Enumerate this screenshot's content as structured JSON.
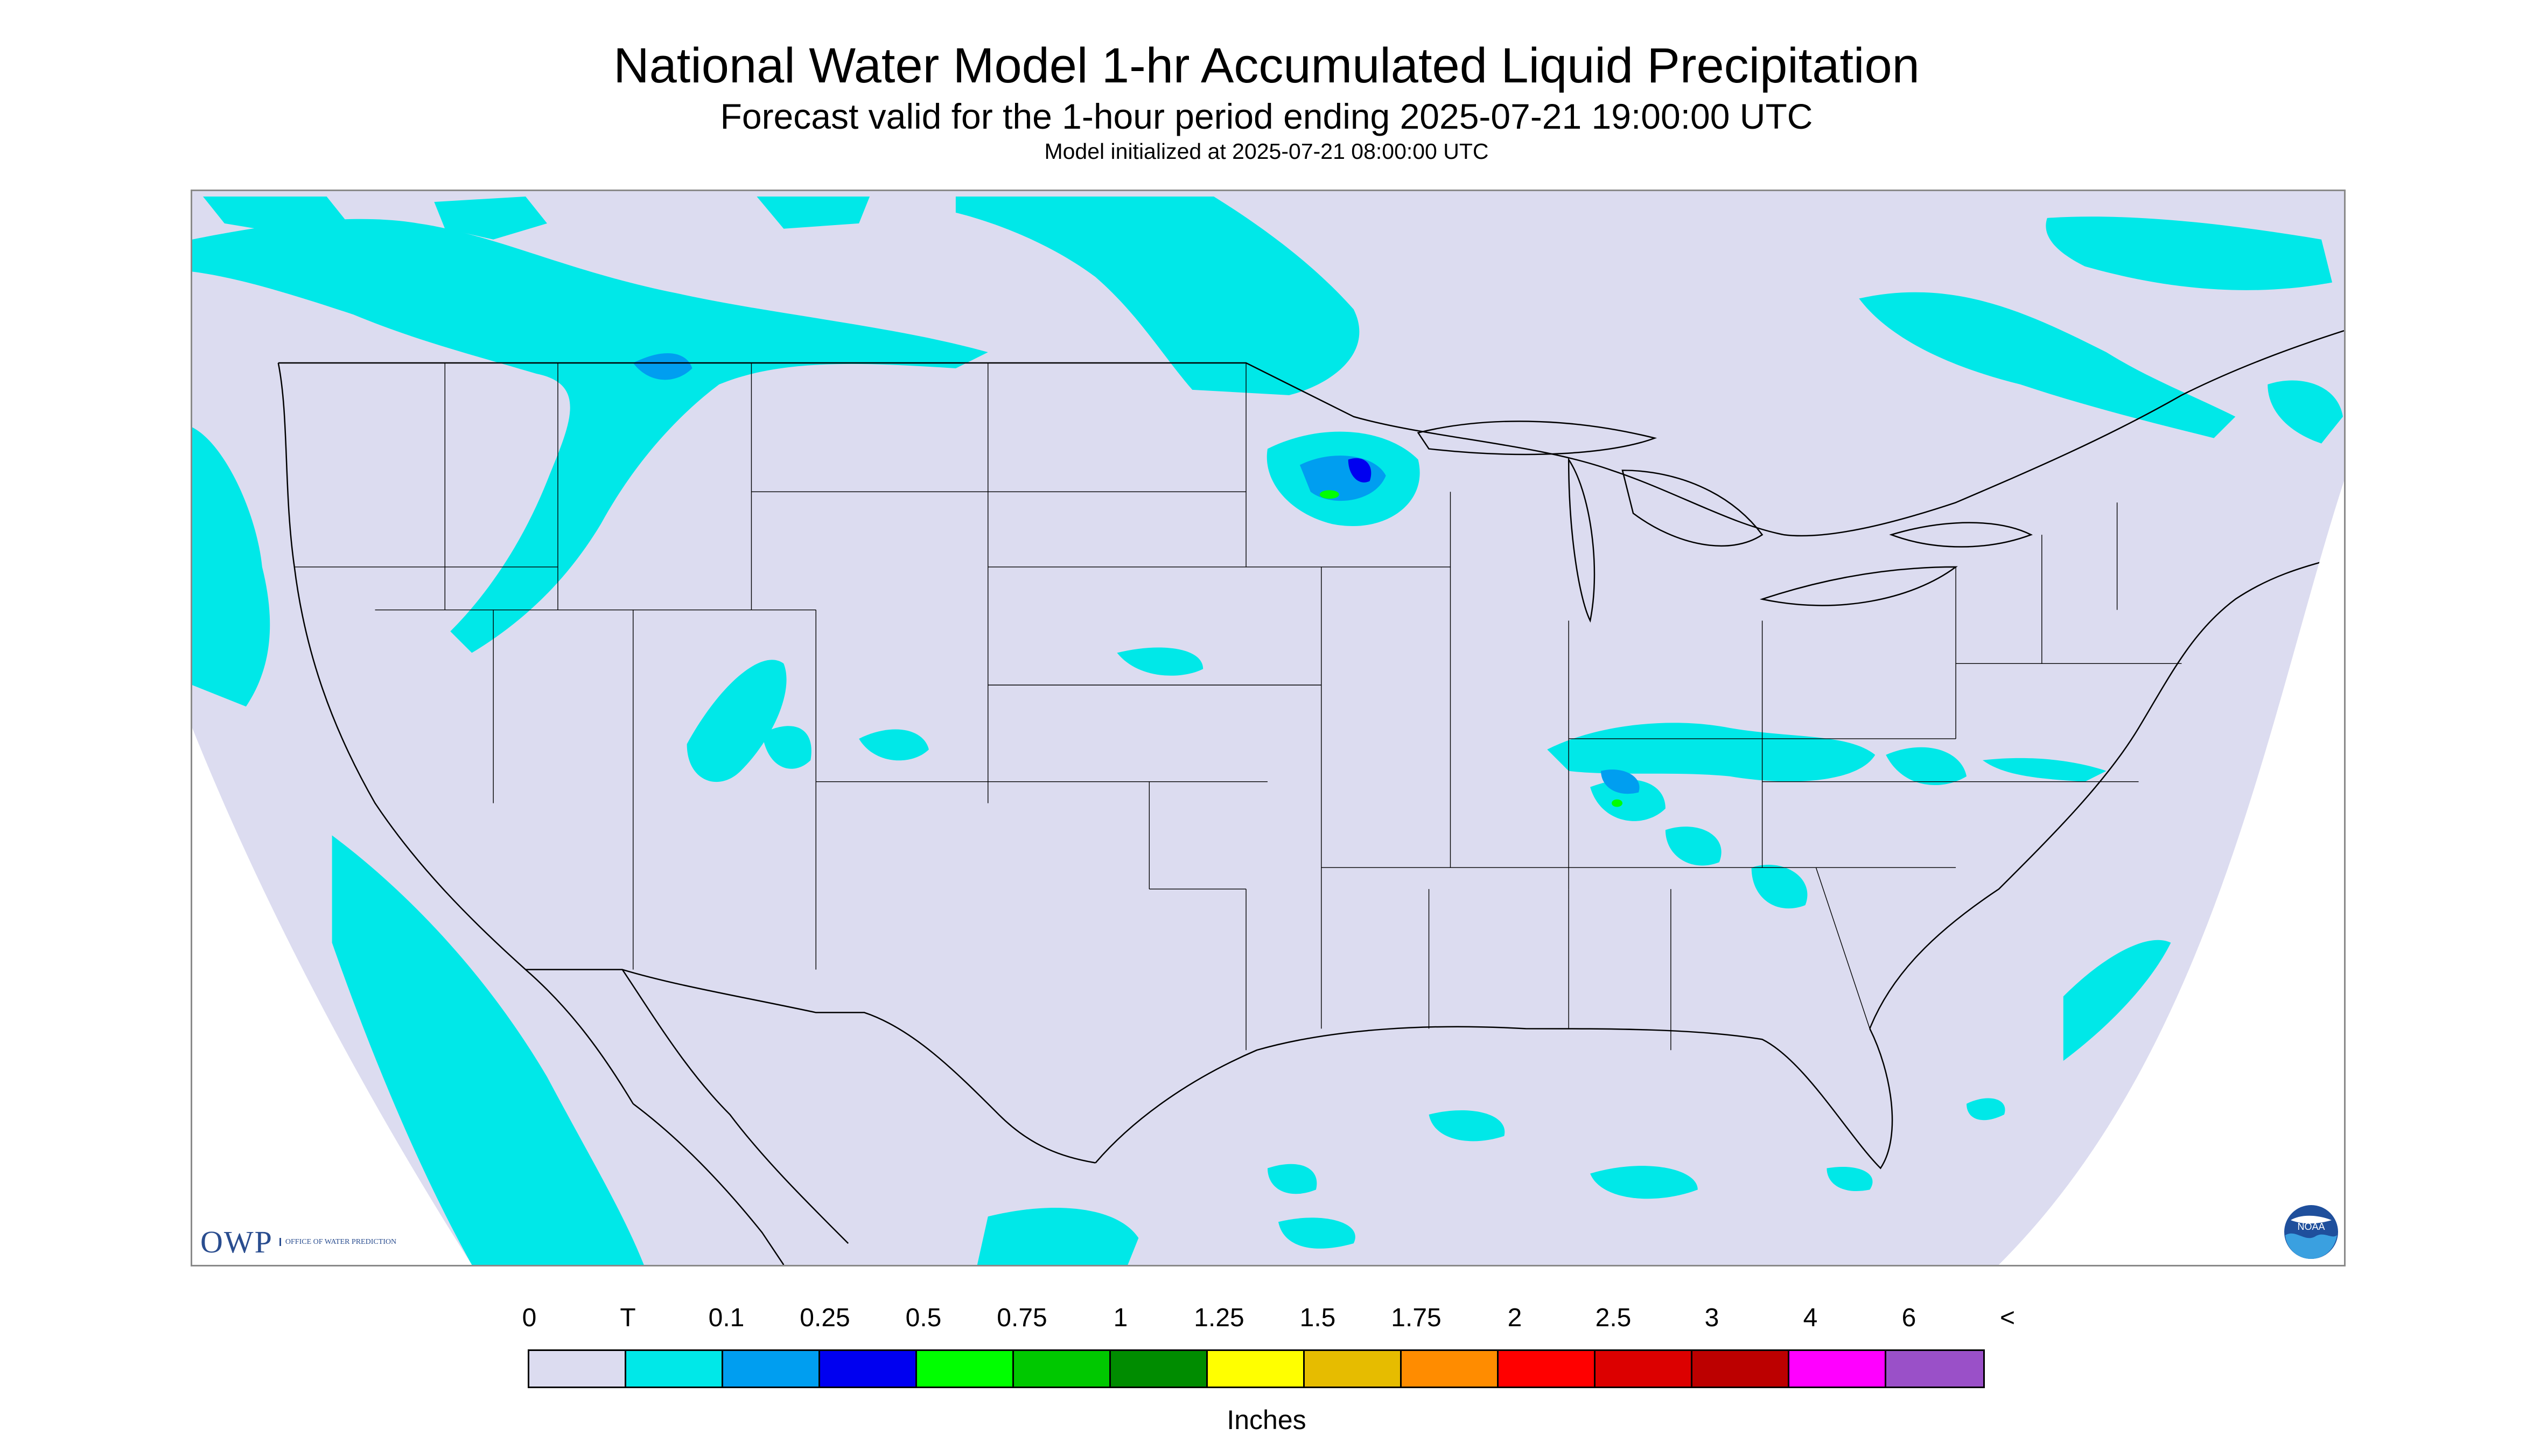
{
  "header": {
    "title": "National Water Model 1-hr Accumulated Liquid Precipitation",
    "subtitle": "Forecast valid for the 1-hour period ending 2025-07-21 19:00:00 UTC",
    "init_line": "Model initialized at 2025-07-21 08:00:00 UTC"
  },
  "logos": {
    "owp_text": "OWP",
    "owp_subtext": "OFFICE OF WATER PREDICTION",
    "noaa_text": "NOAA"
  },
  "legend": {
    "labels": [
      "0",
      "T",
      "0.1",
      "0.25",
      "0.5",
      "0.75",
      "1",
      "1.25",
      "1.5",
      "1.75",
      "2",
      "2.5",
      "3",
      "4",
      "6",
      "<"
    ],
    "colors": [
      "#dcdcf0",
      "#00e8e8",
      "#009ef0",
      "#0000f0",
      "#00ff00",
      "#00c800",
      "#008c00",
      "#ffff00",
      "#e6bc00",
      "#ff8c00",
      "#ff0000",
      "#dc0000",
      "#bc0000",
      "#ff00ff",
      "#9a50c8"
    ],
    "units": "Inches"
  },
  "map": {
    "domain_fill": "#dcdcf0",
    "precip_color": "#00e8e8",
    "moderate_color": "#009ef0",
    "heavy_color": "#0000f0",
    "outside_color": "#ffffff",
    "boundary_color": "#000000"
  }
}
